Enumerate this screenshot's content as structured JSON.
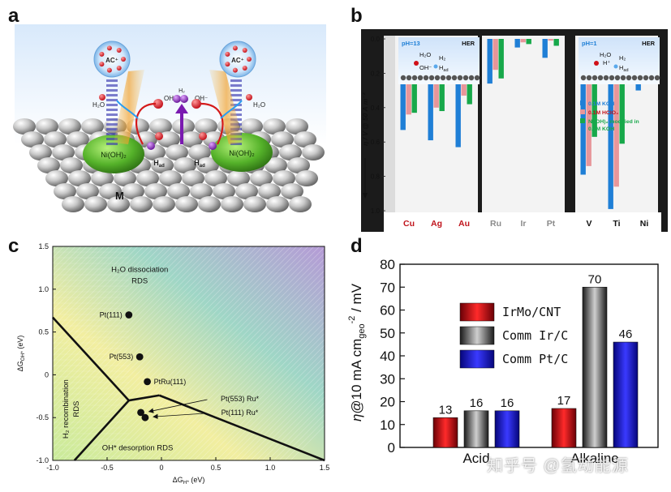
{
  "panels": {
    "a": {
      "letter": "a",
      "labels": {
        "ac_left": "AC⁺",
        "ac_right": "AC⁺",
        "h2o_left": "H₂O",
        "h2o_right": "H₂O",
        "oh_left": "OH⁻",
        "oh_right": "OH⁻",
        "h2": "H₂",
        "had_left": "H",
        "had_right": "H",
        "had_sub": "ad",
        "nioh_left": "Ni(OH)₂",
        "nioh_right": "Ni(OH)₂",
        "metal": "M"
      }
    },
    "b": {
      "letter": "b"
    },
    "c": {
      "letter": "c"
    },
    "d": {
      "letter": "d"
    }
  },
  "chart_data": [
    {
      "panel": "b",
      "type": "bar",
      "ylabel": "η / V @ 50 A m⁻²",
      "ylim": [
        1.0,
        0.0
      ],
      "yticks": [
        "0.0",
        "0.2",
        "0.4",
        "0.6",
        "0.8",
        "1.0"
      ],
      "inverted_axis": true,
      "groups": [
        {
          "categories": [
            "Cu",
            "Ag",
            "Au"
          ],
          "category_color": "#c0141c",
          "inset": {
            "ph": "pH=13",
            "her": "HER",
            "h2o": "H₂O",
            "h2": "H₂",
            "oh": "OH⁻",
            "had": "H",
            "had_sub": "ad"
          }
        },
        {
          "categories": [
            "Ru",
            "Ir",
            "Pt"
          ],
          "category_color": "#8a8a8a"
        },
        {
          "categories": [
            "V",
            "Ti",
            "Ni"
          ],
          "category_color": "#111111",
          "inset": {
            "ph": "pH=1",
            "her": "HER",
            "h2o": "H₂O",
            "hplus": "H⁺",
            "h2": "H₂",
            "had": "H",
            "had_sub": "ad"
          }
        }
      ],
      "categories": [
        "Cu",
        "Ag",
        "Au",
        "Ru",
        "Ir",
        "Pt",
        "V",
        "Ti",
        "Ni"
      ],
      "series": [
        {
          "name": "0.1M KOH",
          "color": "#1f7fd6",
          "values": [
            0.53,
            0.59,
            0.63,
            0.26,
            0.05,
            0.11,
            0.79,
            0.99,
            0.3
          ]
        },
        {
          "name": "0.1M HClO₄",
          "color": "#e7969a",
          "values": [
            0.44,
            0.4,
            0.33,
            0.18,
            0.02,
            0.01,
            0.74,
            0.86,
            0.26
          ]
        },
        {
          "name": "Ni(OH)₂ modified in 0.1M KOH",
          "color": "#17a84a",
          "values": [
            0.43,
            0.42,
            0.38,
            0.23,
            0.03,
            0.04,
            0.57,
            0.61,
            0.24
          ]
        }
      ],
      "legend_position": "right"
    },
    {
      "panel": "c",
      "type": "scatter",
      "xlabel": "ΔG",
      "xlabel_sub": "H*",
      "xlabel_unit": " (eV)",
      "ylabel": "ΔG",
      "ylabel_sub": "OH*",
      "ylabel_unit": " (eV)",
      "xlim": [
        -1.0,
        1.5
      ],
      "ylim": [
        -1.0,
        1.5
      ],
      "xticks": [
        "-1.0",
        "-0.5",
        "0",
        "0.5",
        "1.0",
        "1.5"
      ],
      "yticks": [
        "1.5",
        "1.0",
        "0.5",
        "0",
        "-0.5",
        "-1.0"
      ],
      "regions": {
        "top_line1": "H₂O dissociation",
        "top_line2": "RDS",
        "left": "H₂ recombination",
        "left2": "RDS",
        "bottom": "OH* desorption RDS"
      },
      "boundary_lines": [
        {
          "x": [
            -1.0,
            -0.3
          ],
          "y": [
            0.67,
            -0.3
          ]
        },
        {
          "x": [
            -0.3,
            -0.02
          ],
          "y": [
            -0.3,
            -0.24
          ]
        },
        {
          "x": [
            -0.02,
            1.5
          ],
          "y": [
            -0.24,
            -1.0
          ]
        },
        {
          "x": [
            -0.3,
            -0.8
          ],
          "y": [
            -0.3,
            -1.0
          ]
        }
      ],
      "points": [
        {
          "label": "Pt(111)",
          "x": -0.3,
          "y": 0.7
        },
        {
          "label": "Pt(553)",
          "x": -0.2,
          "y": 0.21
        },
        {
          "label": "PtRu(111)",
          "x": -0.13,
          "y": -0.08
        },
        {
          "label": "",
          "x": -0.19,
          "y": -0.44
        },
        {
          "label": "",
          "x": -0.15,
          "y": -0.5
        }
      ],
      "annotations": [
        {
          "label": "Pt(553) Ru*",
          "text_x": 0.72,
          "text_y": -0.28,
          "arrow_to_x": -0.16,
          "arrow_to_y": -0.43
        },
        {
          "label": "Pt(111) Ru*",
          "text_x": 0.72,
          "text_y": -0.44,
          "arrow_to_x": -0.12,
          "arrow_to_y": -0.49
        }
      ]
    },
    {
      "panel": "d",
      "type": "bar",
      "ylabel": "η@10 mA cm",
      "ylabel_sub": "geo",
      "ylabel_sup": "-2",
      "ylabel_tail": " / mV",
      "ylim": [
        0,
        80
      ],
      "yticks": [
        "0",
        "10",
        "20",
        "30",
        "40",
        "50",
        "60",
        "70",
        "80"
      ],
      "categories": [
        "Acid",
        "Alkaline"
      ],
      "series": [
        {
          "name": "IrMo/CNT",
          "color": "#d01018",
          "values": [
            13,
            17
          ]
        },
        {
          "name": "Comm Ir/C",
          "color": "#444444",
          "values": [
            16,
            70
          ]
        },
        {
          "name": "Comm Pt/C",
          "color": "#1818c8",
          "values": [
            16,
            46
          ]
        }
      ],
      "value_labels": [
        [
          "13",
          "16",
          "16"
        ],
        [
          "17",
          "70",
          "46"
        ]
      ],
      "legend_position": "top-center"
    }
  ],
  "watermark": "知乎号 @氢动能源"
}
